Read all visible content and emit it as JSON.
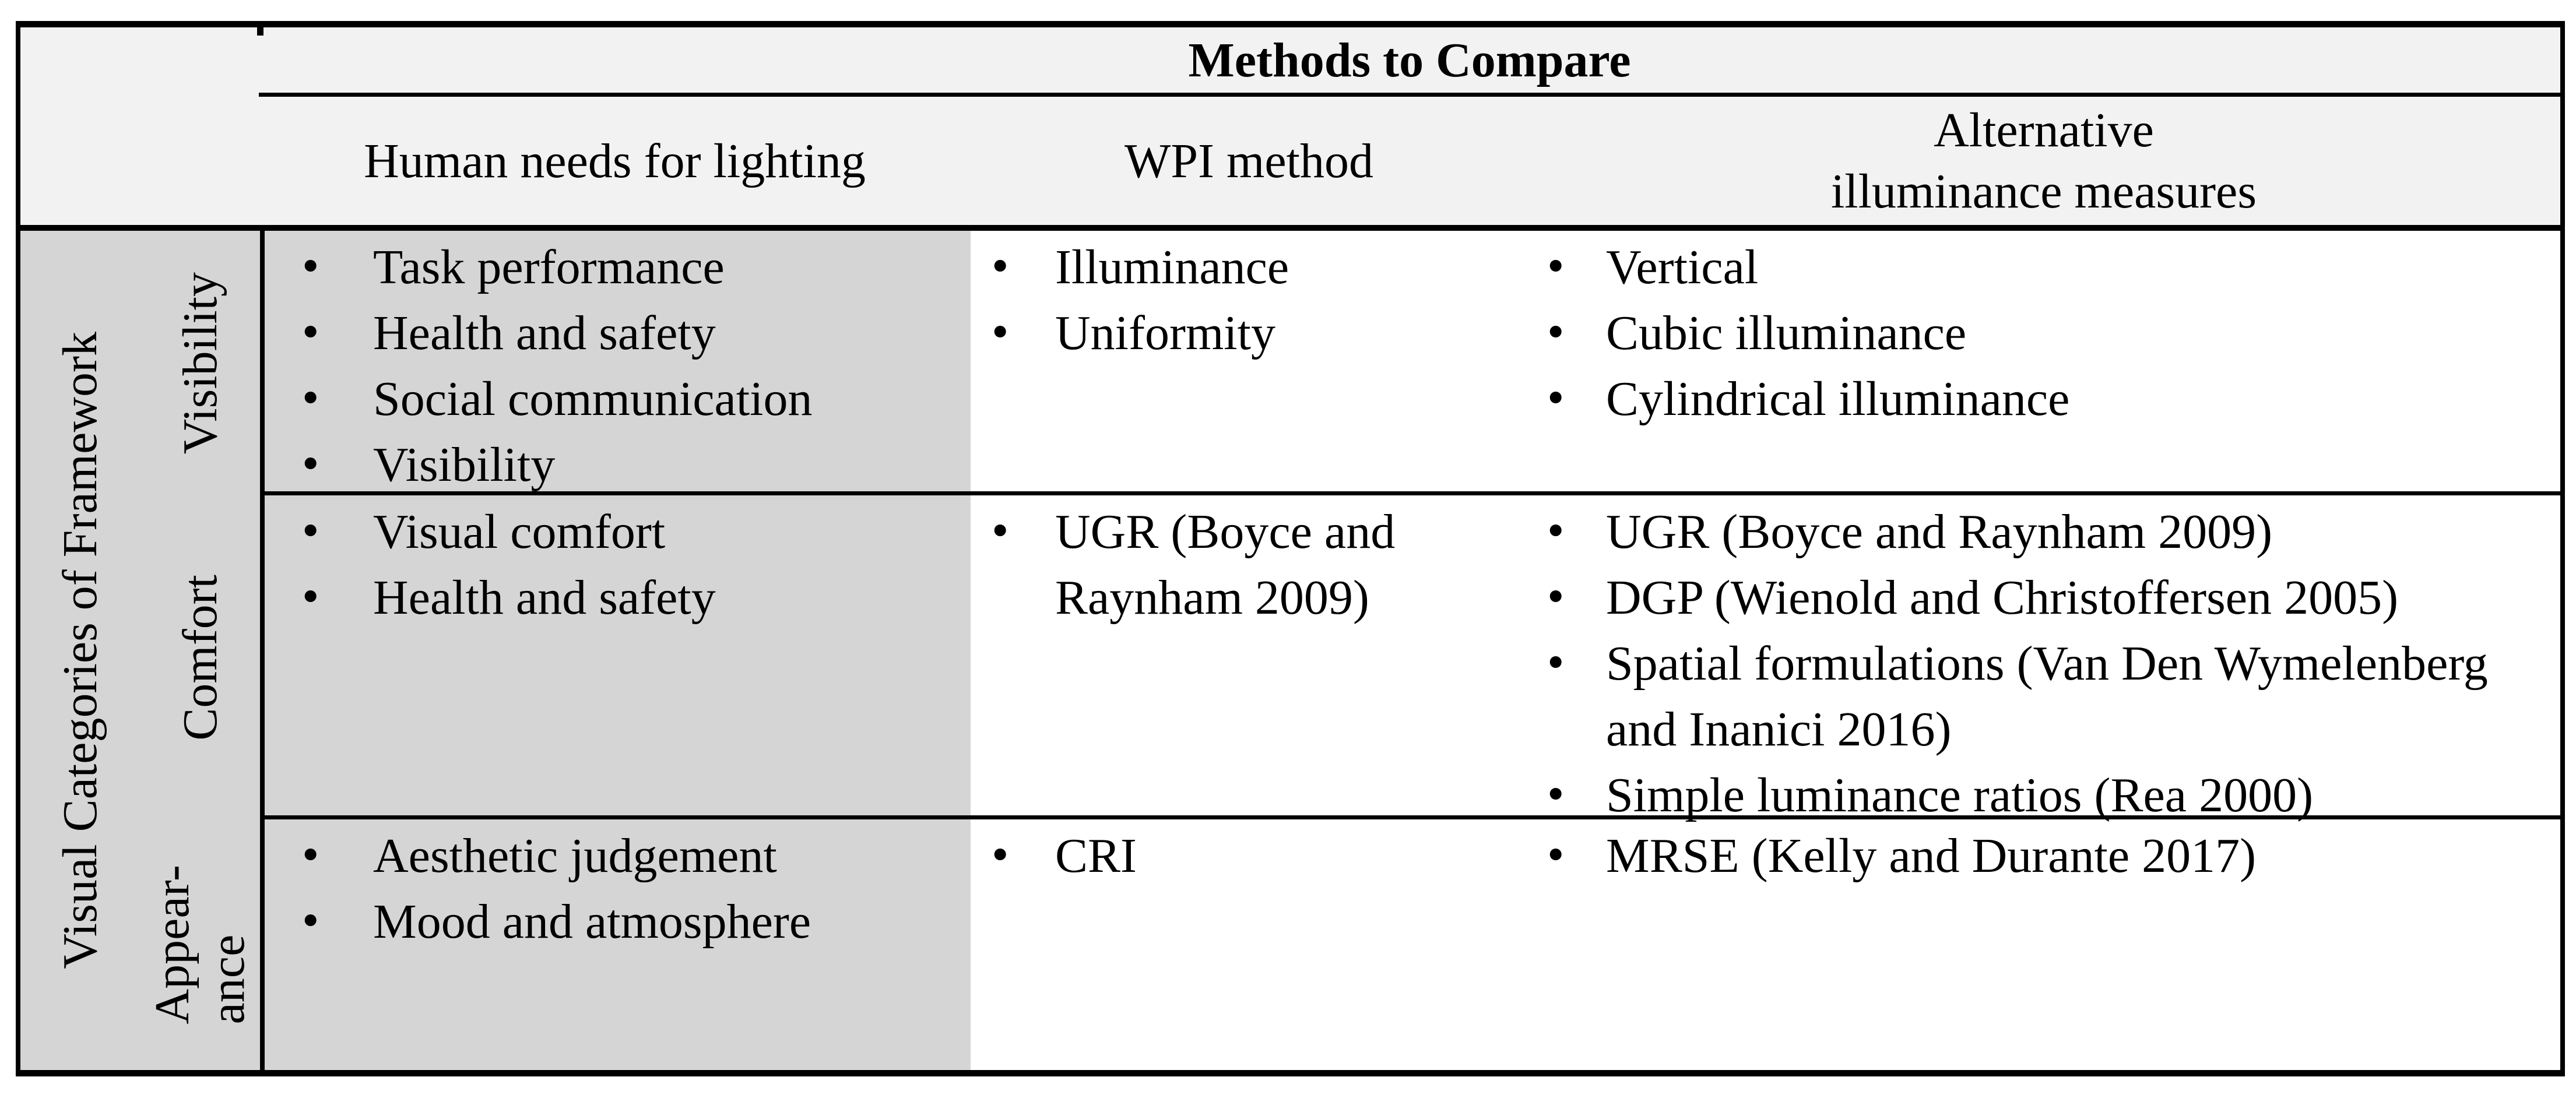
{
  "table": {
    "title": "Methods to Compare",
    "side_label": "Visual Categories of Framework",
    "columns": {
      "human_needs": "Human needs for lighting",
      "wpi": "WPI method",
      "alternative": "Alternative\nilluminance measures"
    },
    "rows": [
      {
        "category": "Visibility",
        "human_needs": [
          "Task performance",
          "Health and safety",
          "Social communication",
          "Visibility"
        ],
        "wpi": [
          "Illuminance",
          "Uniformity"
        ],
        "alternative": [
          "Vertical",
          "Cubic illuminance",
          "Cylindrical illuminance"
        ]
      },
      {
        "category": "Comfort",
        "human_needs": [
          "Visual comfort",
          "Health and safety"
        ],
        "wpi": [
          "UGR (Boyce and Raynham 2009)"
        ],
        "alternative": [
          "UGR (Boyce and Raynham 2009)",
          "DGP (Wienold and Christoffersen 2005)",
          "Spatial formulations (Van Den Wymelenberg and Inanici 2016)",
          "Simple luminance ratios (Rea 2000)"
        ]
      },
      {
        "category": "Appear-\nance",
        "human_needs": [
          "Aesthetic judgement",
          "Mood and atmosphere"
        ],
        "wpi": [
          "CRI"
        ],
        "alternative": [
          "MRSE (Kelly and Durante 2017)"
        ]
      }
    ],
    "colors": {
      "header_bg": "#f2f2f2",
      "label_bg": "#d5d5d5",
      "border": "#000000",
      "cell_bg": "#ffffff"
    }
  }
}
